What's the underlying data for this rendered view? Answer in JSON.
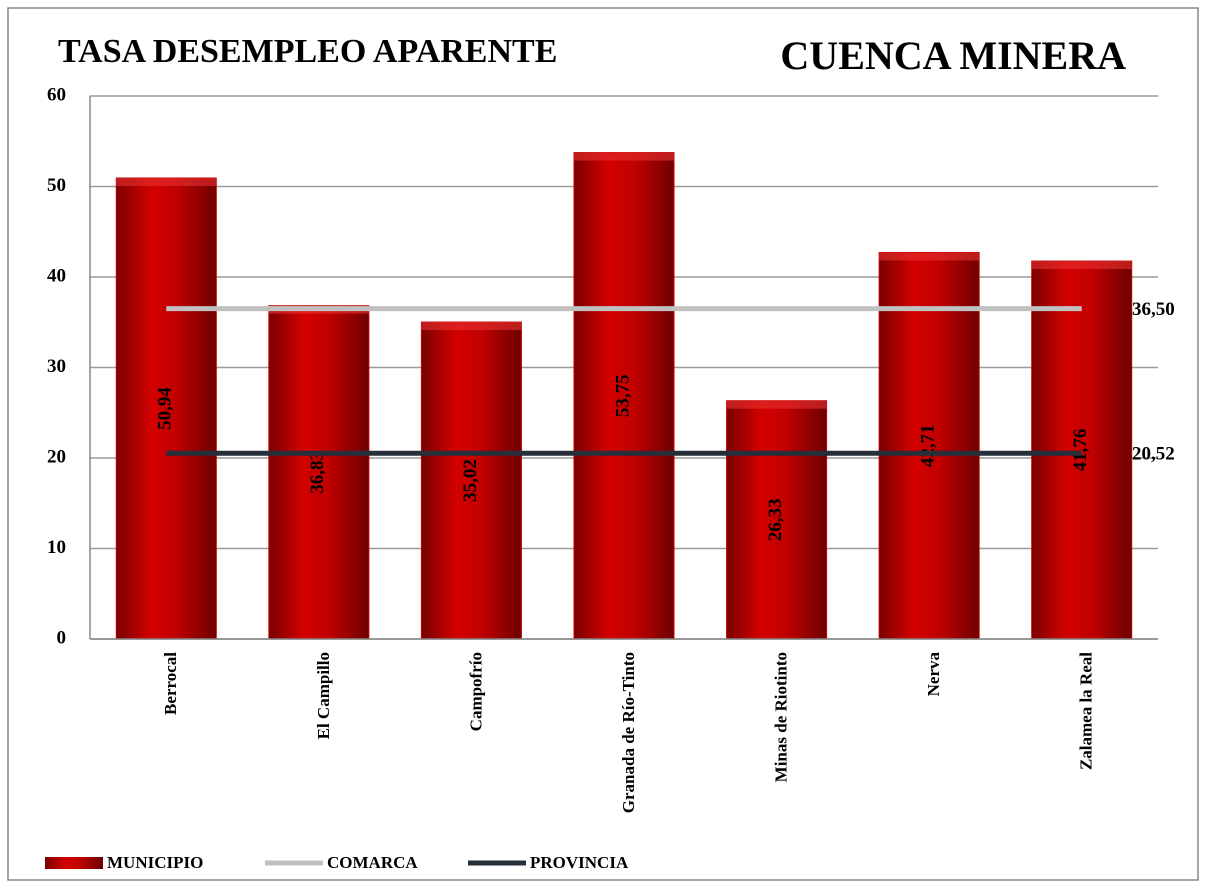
{
  "chart_data": {
    "type": "bar",
    "title": "TASA DESEMPLEO APARENTE",
    "subtitle": "CUENCA MINERA",
    "categories": [
      "Berrocal",
      "El Campillo",
      "Campofrío",
      "Granada de Río-Tinto",
      "Minas de Riotinto",
      "Nerva",
      "Zalamea la Real"
    ],
    "series": [
      {
        "name": "MUNICIPIO",
        "color": "#c00000",
        "values": [
          50.94,
          36.83,
          35.02,
          53.75,
          26.33,
          42.71,
          41.76
        ],
        "value_labels": [
          "50,94",
          "36,83",
          "35,02",
          "53,75",
          "26,33",
          "42,71",
          "41,76"
        ]
      },
      {
        "name": "COMARCA",
        "color": "#c0c0c0",
        "type": "line",
        "value": 36.5,
        "value_label": "36,50"
      },
      {
        "name": "PROVINCIA",
        "color": "#262f3a",
        "type": "line",
        "value": 20.52,
        "value_label": "20,52"
      }
    ],
    "ylim": [
      0,
      60
    ],
    "yticks": [
      0,
      10,
      20,
      30,
      40,
      50,
      60
    ],
    "grid": true,
    "legend": "bottom"
  }
}
